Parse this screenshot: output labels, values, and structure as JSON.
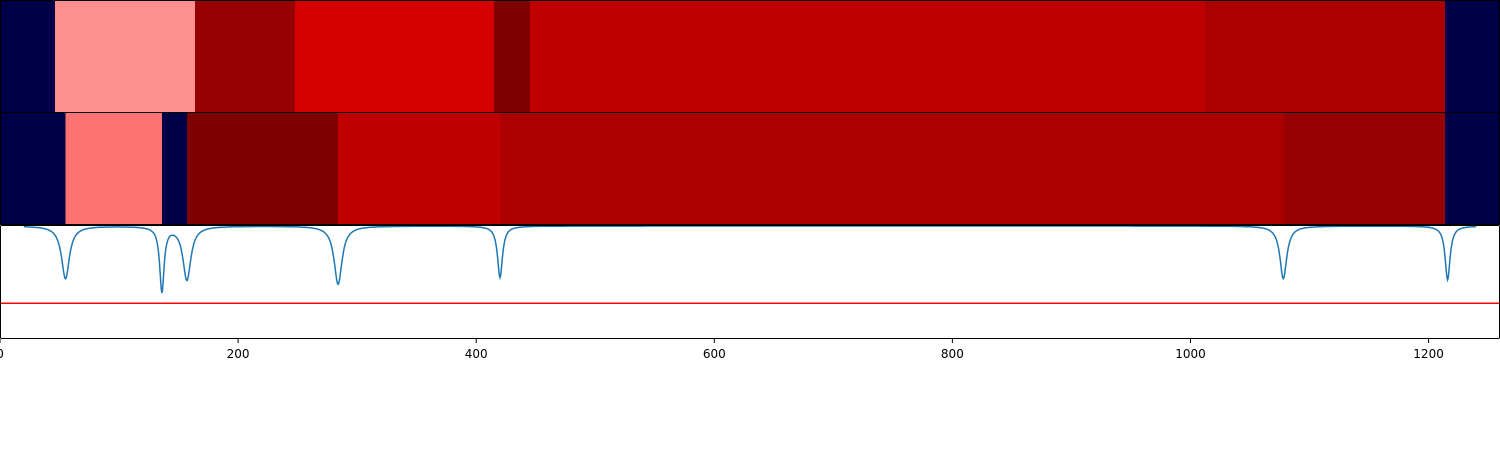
{
  "chart_data": {
    "type": "heatmap",
    "xlim": [
      0,
      1260
    ],
    "x_ticks": [
      0,
      200,
      400,
      600,
      800,
      1000,
      1200
    ],
    "x_tick_labels": [
      "0",
      "200",
      "400",
      "600",
      "800",
      "1000",
      "1200"
    ],
    "colors": {
      "navy": "#000048",
      "red_level_1": "#ff9090",
      "red_level_2": "#ff7272",
      "red_level_3": "#d60000",
      "red_level_4": "#c00000",
      "red_level_5": "#ac0000",
      "red_level_6": "#960000",
      "red_level_7": "#7f0000",
      "line": "#1f77b4",
      "threshold": "#ff0000"
    },
    "rows": [
      {
        "segments": [
          {
            "start": 0,
            "end": 46,
            "color": "navy"
          },
          {
            "start": 46,
            "end": 164,
            "color": "red_level_1"
          },
          {
            "start": 164,
            "end": 248,
            "color": "red_level_6"
          },
          {
            "start": 248,
            "end": 415,
            "color": "red_level_3"
          },
          {
            "start": 415,
            "end": 445,
            "color": "red_level_7"
          },
          {
            "start": 445,
            "end": 1012,
            "color": "red_level_4"
          },
          {
            "start": 1012,
            "end": 1214,
            "color": "red_level_5"
          },
          {
            "start": 1214,
            "end": 1260,
            "color": "navy"
          }
        ]
      },
      {
        "segments": [
          {
            "start": 0,
            "end": 55,
            "color": "navy"
          },
          {
            "start": 55,
            "end": 136,
            "color": "red_level_2"
          },
          {
            "start": 136,
            "end": 157,
            "color": "navy"
          },
          {
            "start": 157,
            "end": 284,
            "color": "red_level_7"
          },
          {
            "start": 284,
            "end": 420,
            "color": "red_level_4"
          },
          {
            "start": 420,
            "end": 1078,
            "color": "red_level_5"
          },
          {
            "start": 1078,
            "end": 1214,
            "color": "red_level_6"
          },
          {
            "start": 1214,
            "end": 1260,
            "color": "navy"
          }
        ]
      }
    ],
    "signal": {
      "ylim": [
        0,
        1
      ],
      "baseline": 1.0,
      "threshold": 0.31,
      "dips": [
        {
          "x": 55,
          "depth": 0.47,
          "width": 4
        },
        {
          "x": 136,
          "depth": 0.58,
          "width": 2.2
        },
        {
          "x": 157,
          "depth": 0.48,
          "width": 4
        },
        {
          "x": 284,
          "depth": 0.52,
          "width": 4
        },
        {
          "x": 420,
          "depth": 0.46,
          "width": 2.5
        },
        {
          "x": 1078,
          "depth": 0.47,
          "width": 3.5
        },
        {
          "x": 1216,
          "depth": 0.48,
          "width": 2.5
        }
      ]
    }
  }
}
